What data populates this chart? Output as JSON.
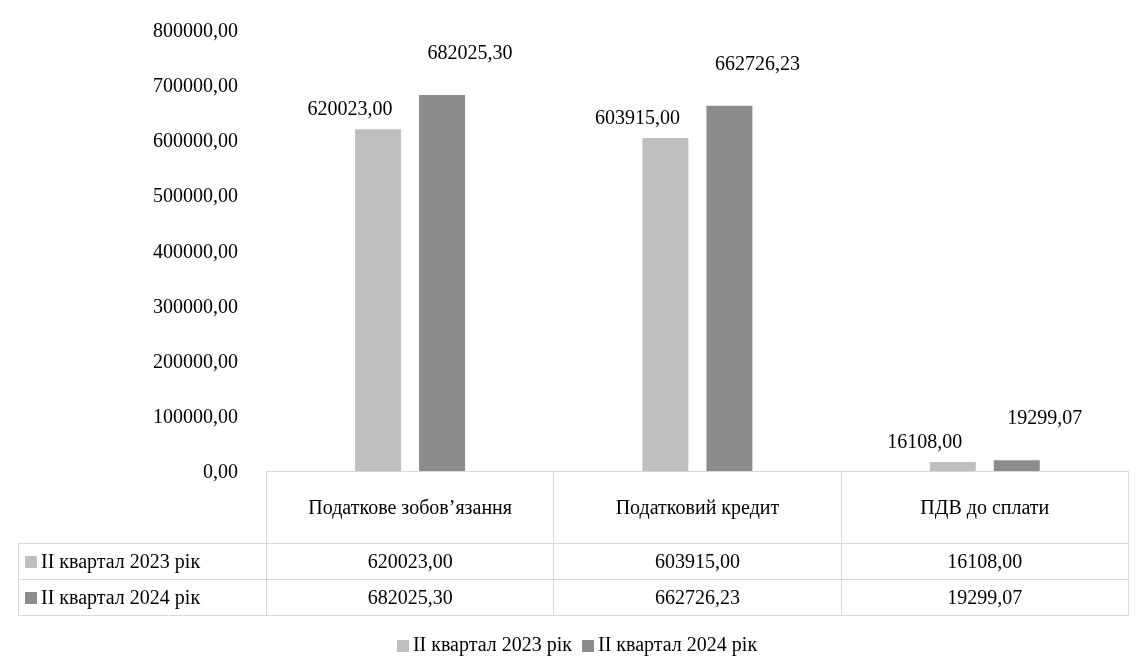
{
  "chart_data": {
    "type": "bar",
    "categories": [
      "Податкове зобов’язання",
      "Податковий кредит",
      "ПДВ до сплати"
    ],
    "series": [
      {
        "name": "ІІ квартал 2023 рік",
        "color": "#bfbfbf",
        "values": [
          620023.0,
          603915.0,
          16108.0
        ],
        "value_labels": [
          "620023,00",
          "603915,00",
          "16108,00"
        ]
      },
      {
        "name": "ІІ квартал 2024 рік",
        "color": "#8c8c8c",
        "values": [
          682025.3,
          662726.23,
          19299.07
        ],
        "value_labels": [
          "682025,30",
          "662726,23",
          "19299,07"
        ]
      }
    ],
    "ylim": [
      0,
      800000
    ],
    "yticks": [
      {
        "value": 0,
        "label": "0,00"
      },
      {
        "value": 100000,
        "label": "100000,00"
      },
      {
        "value": 200000,
        "label": "200000,00"
      },
      {
        "value": 300000,
        "label": "300000,00"
      },
      {
        "value": 400000,
        "label": "400000,00"
      },
      {
        "value": 500000,
        "label": "500000,00"
      },
      {
        "value": 600000,
        "label": "600000,00"
      },
      {
        "value": 700000,
        "label": "700000,00"
      },
      {
        "value": 800000,
        "label": "800000,00"
      }
    ],
    "grid": false,
    "legend": "bottom"
  }
}
